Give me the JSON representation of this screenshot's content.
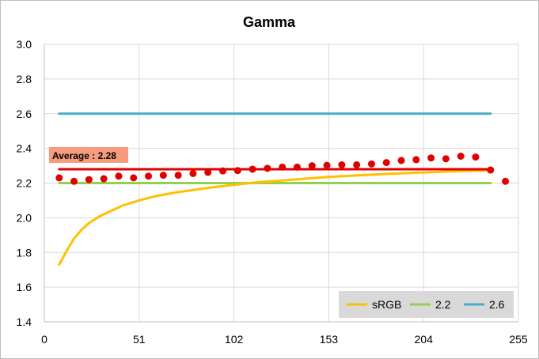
{
  "chart_data": {
    "type": "line",
    "title": "Gamma",
    "xlabel": "",
    "ylabel": "",
    "xlim": [
      0,
      255
    ],
    "ylim": [
      1.4,
      3.0
    ],
    "xticks": [
      0,
      51,
      102,
      153,
      204,
      255
    ],
    "yticks": [
      1.4,
      1.6,
      1.8,
      2.0,
      2.2,
      2.4,
      2.6,
      2.8,
      3.0
    ],
    "ytick_labels": [
      "1.4",
      "1.6",
      "1.8",
      "2.0",
      "2.2",
      "2.4",
      "2.6",
      "2.8",
      "3.0"
    ],
    "grid": true,
    "legend_position": "bottom-right",
    "series": [
      {
        "name": "sRGB",
        "kind": "line",
        "color": "#FFC000",
        "x": [
          8,
          12,
          16,
          20,
          24,
          30,
          36,
          42,
          51,
          60,
          70,
          80,
          90,
          102,
          115,
          128,
          140,
          153,
          166,
          179,
          192,
          204,
          216,
          228,
          240
        ],
        "y": [
          1.73,
          1.81,
          1.88,
          1.93,
          1.97,
          2.01,
          2.04,
          2.07,
          2.1,
          2.125,
          2.145,
          2.16,
          2.175,
          2.19,
          2.205,
          2.215,
          2.225,
          2.235,
          2.243,
          2.25,
          2.256,
          2.261,
          2.266,
          2.27,
          2.273
        ]
      },
      {
        "name": "2.2",
        "kind": "line",
        "color": "#92D050",
        "x": [
          8,
          240
        ],
        "y": [
          2.2,
          2.2
        ]
      },
      {
        "name": "2.6",
        "kind": "line",
        "color": "#4BACC6",
        "x": [
          8,
          240
        ],
        "y": [
          2.6,
          2.6
        ]
      },
      {
        "kind": "line",
        "color": "#E00000",
        "x": [
          8,
          240
        ],
        "y": [
          2.28,
          2.28
        ]
      },
      {
        "kind": "scatter",
        "color": "#E00000",
        "x": [
          8,
          16,
          24,
          32,
          40,
          48,
          56,
          64,
          72,
          80,
          88,
          96,
          104,
          112,
          120,
          128,
          136,
          144,
          152,
          160,
          168,
          176,
          184,
          192,
          200,
          208,
          216,
          224,
          232,
          240,
          248
        ],
        "y": [
          2.23,
          2.21,
          2.22,
          2.225,
          2.24,
          2.23,
          2.24,
          2.245,
          2.245,
          2.255,
          2.262,
          2.27,
          2.272,
          2.28,
          2.285,
          2.292,
          2.292,
          2.3,
          2.302,
          2.305,
          2.305,
          2.31,
          2.318,
          2.33,
          2.335,
          2.345,
          2.34,
          2.355,
          2.35,
          2.275,
          2.21
        ]
      }
    ],
    "annotations": [
      {
        "text": "Average : 2.28",
        "x": 0,
        "y": 2.28,
        "background": "#F79B7F"
      }
    ]
  }
}
